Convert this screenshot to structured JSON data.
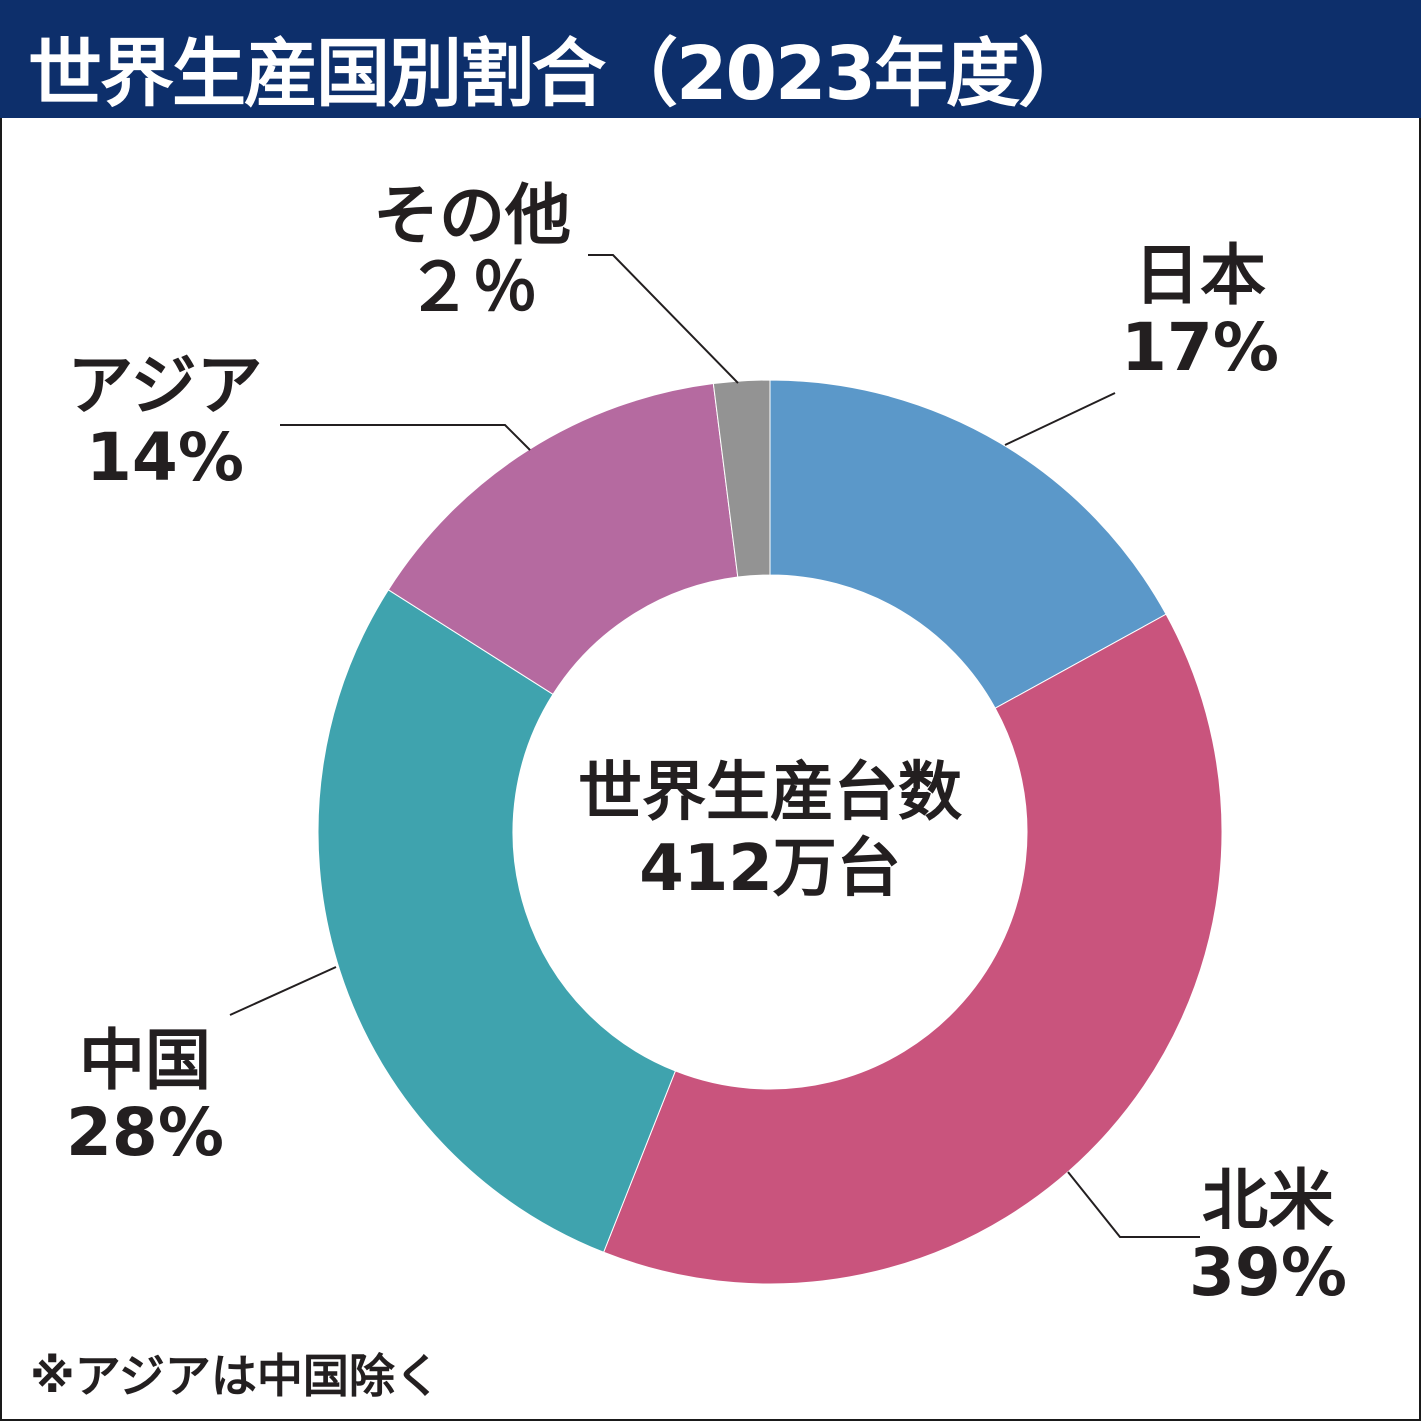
{
  "header": {
    "title": "世界生産国別割合（2023年度）"
  },
  "chart_data": {
    "type": "pie",
    "variant": "donut",
    "title": "世界生産国別割合（2023年度）",
    "center_label": {
      "line1": "世界生産台数",
      "line2": "412万台"
    },
    "slices": [
      {
        "name": "日本",
        "value": 17,
        "label": "17%",
        "color": "#5b98c9"
      },
      {
        "name": "北米",
        "value": 39,
        "label": "39%",
        "color": "#c9547d"
      },
      {
        "name": "中国",
        "value": 28,
        "label": "28%",
        "color": "#3fa3ae"
      },
      {
        "name": "アジア",
        "value": 14,
        "label": "14%",
        "color": "#b56aa0"
      },
      {
        "name": "その他",
        "value": 2,
        "label": "２％",
        "color": "#939393"
      }
    ],
    "start": "top",
    "direction": "clockwise",
    "footnote": "※アジアは中国除く"
  }
}
